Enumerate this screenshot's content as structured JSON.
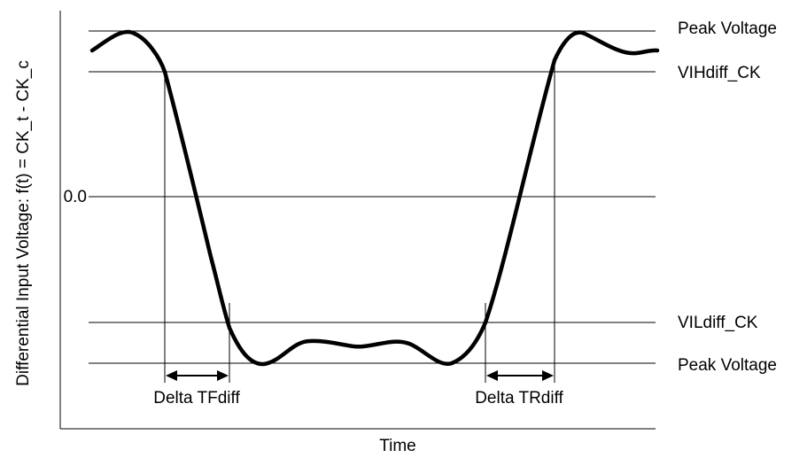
{
  "axis": {
    "y_label": "Differential Input Voltage: f(t) = CK_t - CK_c",
    "x_label": "Time",
    "zero_label": "0.0"
  },
  "levels": {
    "peak_top": "Peak Voltage",
    "vih": "VIHdiff_CK",
    "vil": "VILdiff_CK",
    "peak_bottom": "Peak Voltage"
  },
  "intervals": {
    "fall": "Delta TFdiff",
    "rise": "Delta TRdiff"
  },
  "colors": {
    "line": "#000000",
    "background": "#ffffff"
  }
}
